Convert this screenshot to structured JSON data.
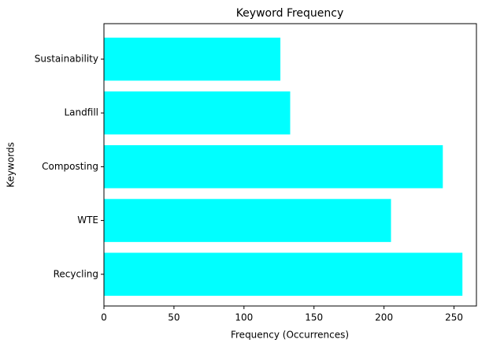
{
  "chart_data": {
    "type": "barh",
    "title": "Keyword Frequency",
    "x_label": "Frequency (Occurrences)",
    "y_label": "Keywords",
    "categories": [
      "Recycling",
      "WTE",
      "Composting",
      "Landfill",
      "Sustainability"
    ],
    "values": [
      256,
      205,
      242,
      133,
      126
    ],
    "color": "#00ffff",
    "xlim": [
      0,
      266
    ],
    "xticks": [
      0,
      50,
      100,
      150,
      200,
      250
    ],
    "grid": false
  }
}
